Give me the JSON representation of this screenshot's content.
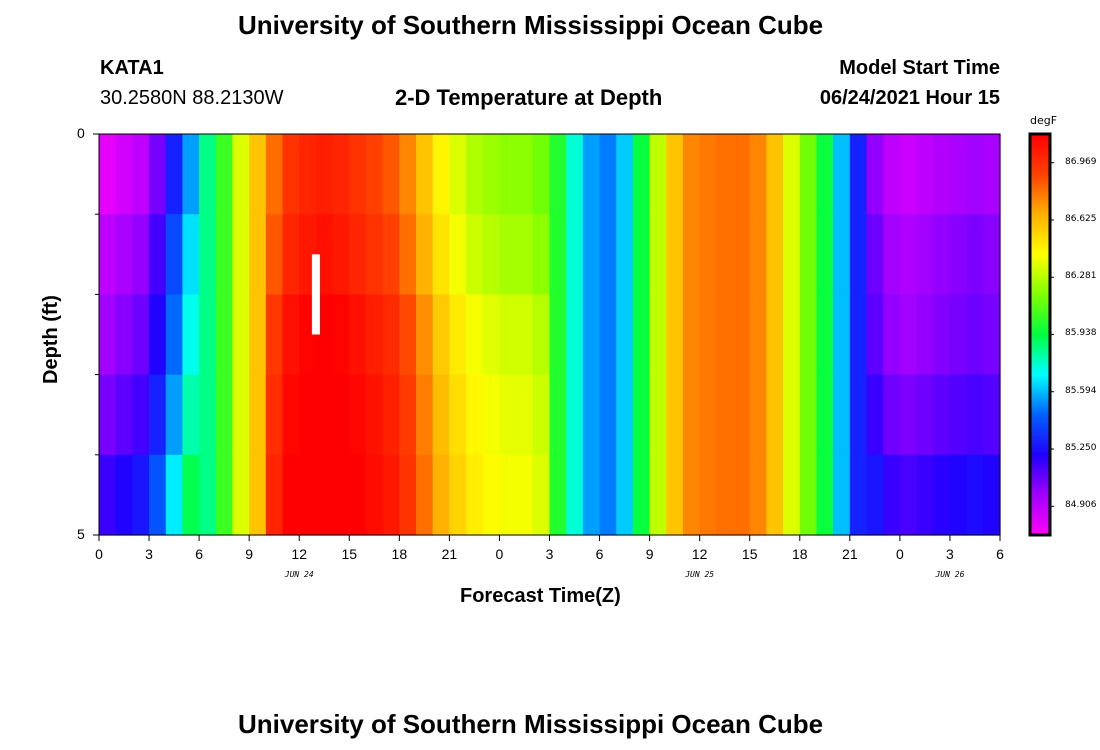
{
  "titles": {
    "top": "University of Southern Mississippi Ocean Cube",
    "bottom": "University of Southern Mississippi Ocean Cube"
  },
  "station": {
    "name": "KATA1",
    "coords": "30.2580N  88.2130W"
  },
  "model": {
    "label": "Model Start Time",
    "time": "06/24/2021 Hour 15"
  },
  "chart_data": {
    "type": "heatmap",
    "title": "2-D Temperature at Depth",
    "xlabel": "Forecast Time(Z)",
    "ylabel": "Depth (ft)",
    "x_ticks": [
      "0",
      "3",
      "6",
      "9",
      "12",
      "15",
      "18",
      "21",
      "0",
      "3",
      "6",
      "9",
      "12",
      "15",
      "18",
      "21",
      "0",
      "3",
      "6"
    ],
    "x_range_hours": [
      0,
      54
    ],
    "date_labels": [
      {
        "label": "JUN 24",
        "hour": 12
      },
      {
        "label": "JUN 25",
        "hour": 36
      },
      {
        "label": "JUN 26",
        "hour": 51
      }
    ],
    "y_tick_labels": [
      {
        "label": "0",
        "depth": 0
      },
      {
        "label": "5",
        "depth": 5
      }
    ],
    "y_minor_ticks": [
      1,
      2,
      3,
      4
    ],
    "ylim": [
      5,
      0
    ],
    "depth_layers_ft": [
      0.5,
      1.5,
      2.5,
      3.5,
      4.5
    ],
    "time_step_hours": 1,
    "profile": [
      84.85,
      84.9,
      84.95,
      85.1,
      85.35,
      85.6,
      85.85,
      86.05,
      86.35,
      86.6,
      86.85,
      87.0,
      87.05,
      87.08,
      87.05,
      87.0,
      86.95,
      86.9,
      86.8,
      86.65,
      86.5,
      86.4,
      86.32,
      86.28,
      86.25,
      86.25,
      86.2,
      86.0,
      85.75,
      85.55,
      85.5,
      85.62,
      85.95,
      86.3,
      86.6,
      86.75,
      86.78,
      86.8,
      86.8,
      86.75,
      86.6,
      86.35,
      86.15,
      85.95,
      85.6,
      85.3,
      85.05,
      84.95,
      84.92,
      84.95,
      84.98,
      85.0,
      85.02,
      85.0,
      84.98
    ],
    "depth_adjust": [
      {
        "from_hour": 10,
        "to_hour": 27,
        "delta": [
          -0.05,
          0.0,
          0.08,
          0.12,
          0.15
        ]
      },
      {
        "from_hour": 0,
        "to_hour": 6,
        "delta": [
          -0.05,
          0.05,
          0.12,
          0.2,
          0.32
        ]
      },
      {
        "from_hour": 46,
        "to_hour": 55,
        "delta": [
          -0.05,
          0.02,
          0.05,
          0.12,
          0.22
        ]
      }
    ],
    "colorbar": {
      "unit": "degF",
      "levels": [
        84.906,
        85.25,
        85.594,
        85.938,
        86.281,
        86.625,
        86.969
      ],
      "range": [
        84.734,
        87.141
      ],
      "colors": [
        "#ff00ff",
        "#a000ff",
        "#2000ff",
        "#0060ff",
        "#00ffff",
        "#00ff40",
        "#80ff00",
        "#ffff00",
        "#ffb000",
        "#ff4000",
        "#ff0000"
      ]
    },
    "marker": {
      "hour": 13,
      "depth_top": 1.5,
      "depth_bottom": 2.5,
      "color": "#ffffff"
    }
  }
}
